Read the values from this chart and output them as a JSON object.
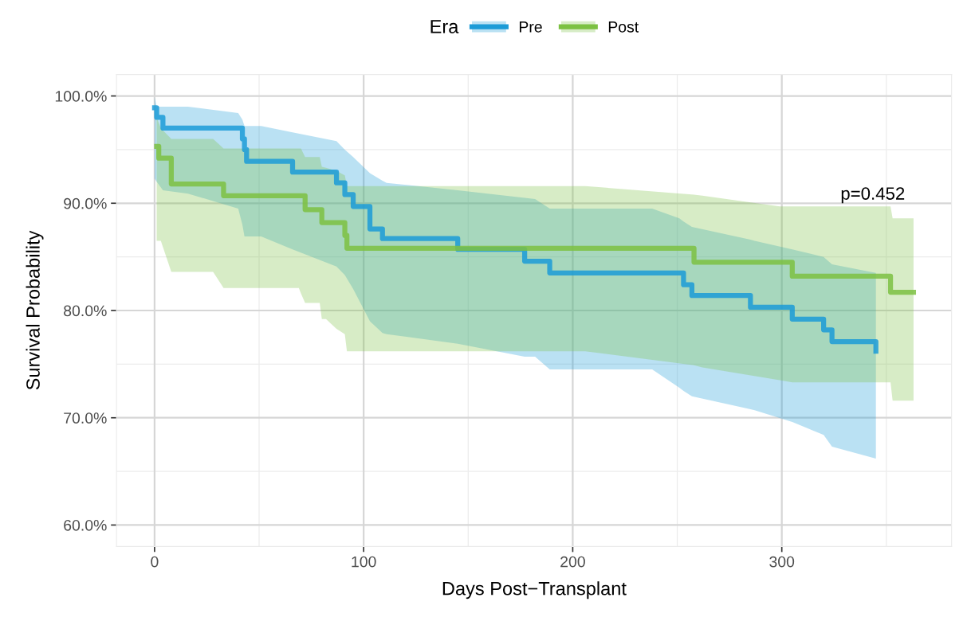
{
  "chart_data": {
    "type": "step",
    "xlabel": "Days Post−Transplant",
    "ylabel": "Survival Probability",
    "legend_title": "Era",
    "legend": "top",
    "grid": true,
    "line_style": "solid",
    "marker": "none",
    "xlim": [
      -18.2,
      381.2
    ],
    "ylim": [
      58,
      102
    ],
    "xticks": [
      0,
      100,
      200,
      300
    ],
    "yticks": [
      {
        "value": 60,
        "label": "60.0%"
      },
      {
        "value": 70,
        "label": "70.0%"
      },
      {
        "value": 80,
        "label": "80.0%"
      },
      {
        "value": 90,
        "label": "90.0%"
      },
      {
        "value": 100,
        "label": "100.0%"
      }
    ],
    "annotations": [
      "p=0.452"
    ],
    "series": [
      {
        "name": "Pre",
        "color": "#1b9bd7",
        "x": [
          0,
          1,
          4,
          16,
          40,
          42,
          43,
          44,
          51,
          66,
          87,
          91,
          95,
          103,
          109,
          111,
          145,
          177,
          182,
          189,
          238,
          251,
          253,
          257,
          285,
          287,
          305,
          320,
          324,
          345
        ],
        "values": [
          98.9,
          98.0,
          97.0,
          97.0,
          97.0,
          96.0,
          95.0,
          93.9,
          93.9,
          92.9,
          91.9,
          90.8,
          89.7,
          87.6,
          86.7,
          86.7,
          85.7,
          84.6,
          84.6,
          83.5,
          83.5,
          83.5,
          82.4,
          81.4,
          80.3,
          80.3,
          79.2,
          78.2,
          77.1,
          76.2
        ],
        "upper": [
          99.9,
          99.0,
          99.0,
          99.0,
          98.4,
          97.8,
          97.2,
          97.2,
          97.2,
          96.6,
          95.8,
          95.0,
          94.3,
          92.8,
          92.1,
          91.9,
          91.2,
          90.5,
          90.4,
          89.5,
          89.5,
          88.6,
          88.3,
          87.8,
          86.6,
          86.5,
          85.7,
          85.0,
          84.3,
          83.5
        ],
        "lower": [
          92.3,
          92.0,
          91.2,
          90.9,
          89.5,
          88.0,
          86.9,
          86.9,
          86.9,
          85.7,
          84.1,
          83.3,
          82.0,
          79.0,
          77.9,
          77.8,
          76.9,
          75.7,
          75.7,
          74.5,
          74.5,
          72.8,
          72.5,
          72.0,
          70.8,
          70.7,
          69.6,
          68.4,
          67.3,
          66.2
        ]
      },
      {
        "name": "Post",
        "color": "#7cc142",
        "x": [
          1,
          2,
          3,
          8,
          28,
          33,
          69,
          70,
          72,
          79,
          80,
          82,
          87,
          91,
          92,
          206,
          258,
          262,
          299,
          305,
          352,
          353,
          363
        ],
        "values": [
          95.3,
          94.2,
          94.2,
          91.8,
          91.8,
          90.7,
          90.7,
          90.7,
          89.4,
          89.4,
          88.2,
          88.2,
          88.2,
          87.0,
          85.8,
          85.8,
          84.5,
          84.5,
          84.5,
          83.2,
          81.7,
          81.7,
          81.7
        ],
        "upper": [
          98.0,
          97.5,
          97.0,
          96.0,
          96.0,
          95.1,
          95.1,
          95.1,
          94.3,
          94.3,
          93.4,
          93.3,
          93.0,
          92.6,
          91.6,
          91.6,
          90.8,
          90.7,
          89.7,
          89.7,
          89.7,
          88.6,
          88.6
        ],
        "lower": [
          86.5,
          86.5,
          86.5,
          83.6,
          83.6,
          82.1,
          82.1,
          81.6,
          80.7,
          80.7,
          79.2,
          79.2,
          78.3,
          77.8,
          76.2,
          76.2,
          74.9,
          74.7,
          73.5,
          73.3,
          73.3,
          71.6,
          71.6
        ]
      }
    ]
  }
}
